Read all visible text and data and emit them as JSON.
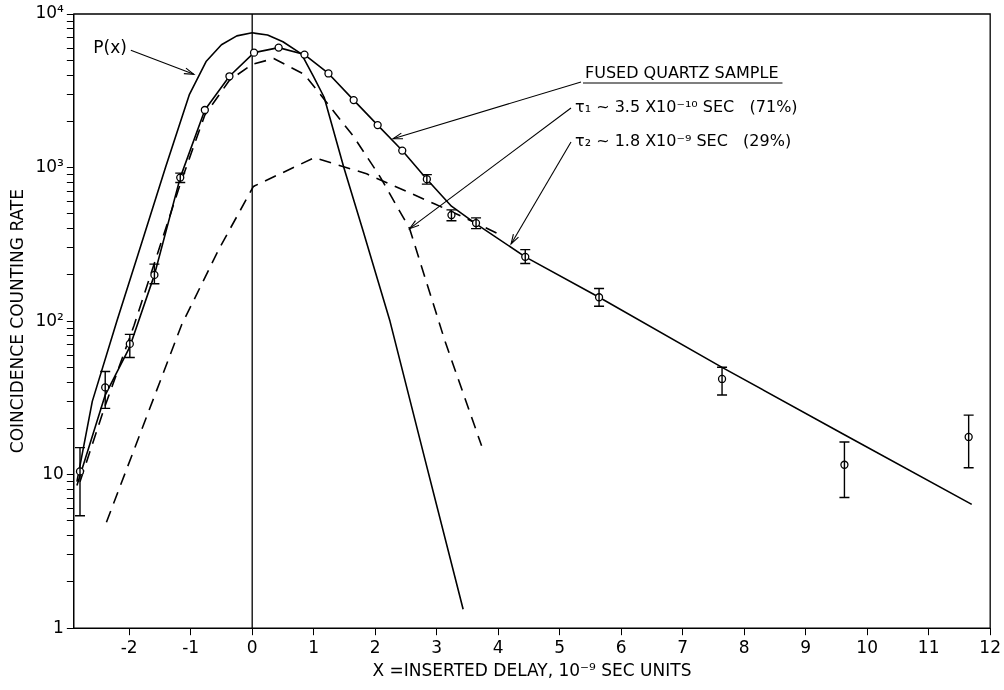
{
  "chart_data": {
    "type": "line",
    "xlabel": "X =INSERTED DELAY, 10⁻⁹ SEC UNITS",
    "ylabel": "COINCIDENCE COUNTING RATE",
    "log": "y",
    "grid": false,
    "legend": false,
    "xlim": [
      -2.9,
      12
    ],
    "xticks": [
      -2,
      -1,
      0,
      1,
      2,
      3,
      4,
      5,
      6,
      7,
      8,
      9,
      10,
      11,
      12
    ],
    "ylim": [
      1,
      10000
    ],
    "yticks": [
      1,
      {
        "value": 2,
        "label": null
      },
      {
        "value": 3,
        "label": null
      },
      {
        "value": 4,
        "label": null
      },
      {
        "value": 5,
        "label": null
      },
      {
        "value": 6,
        "label": null
      },
      {
        "value": 7,
        "label": null
      },
      {
        "value": 8,
        "label": null
      },
      {
        "value": 9,
        "label": null
      },
      10,
      {
        "value": 20,
        "label": null
      },
      {
        "value": 30,
        "label": null
      },
      {
        "value": 40,
        "label": null
      },
      {
        "value": 50,
        "label": null
      },
      {
        "value": 60,
        "label": null
      },
      {
        "value": 70,
        "label": null
      },
      {
        "value": 80,
        "label": null
      },
      {
        "value": 90,
        "label": null
      },
      {
        "value": 100,
        "label": "10²"
      },
      {
        "value": 200,
        "label": null
      },
      {
        "value": 300,
        "label": null
      },
      {
        "value": 400,
        "label": null
      },
      {
        "value": 500,
        "label": null
      },
      {
        "value": 600,
        "label": null
      },
      {
        "value": 700,
        "label": null
      },
      {
        "value": 800,
        "label": null
      },
      {
        "value": 900,
        "label": null
      },
      {
        "value": 1000,
        "label": "10³"
      },
      {
        "value": 2000,
        "label": null
      },
      {
        "value": 3000,
        "label": null
      },
      {
        "value": 4000,
        "label": null
      },
      {
        "value": 5000,
        "label": null
      },
      {
        "value": 6000,
        "label": null
      },
      {
        "value": 7000,
        "label": null
      },
      {
        "value": 8000,
        "label": null
      },
      {
        "value": 9000,
        "label": null
      },
      {
        "value": 10000,
        "label": "10⁴"
      }
    ],
    "ref_lines": [
      {
        "axis": "x",
        "value": 0,
        "color": "#000000",
        "line_style": "solid"
      }
    ],
    "series": [
      {
        "type": "scatter",
        "color": "#000000",
        "marker": "circle",
        "x": [
          -2.8,
          -2.39,
          -1.99,
          -1.59,
          -1.17,
          -0.77,
          -0.37,
          0.03,
          0.43,
          0.85,
          1.24,
          1.65,
          2.04,
          2.44,
          2.84,
          3.24,
          3.64,
          4.44,
          5.64,
          7.64,
          9.63,
          11.65
        ],
        "values": [
          10.5,
          37,
          71,
          200,
          860,
          2370,
          3930,
          5600,
          6040,
          5440,
          4100,
          2750,
          1890,
          1290,
          840,
          490,
          435,
          262,
          143,
          42,
          11.6,
          17.6
        ],
        "errors": [
          [
            5.4,
            15
          ],
          [
            27,
            47
          ],
          [
            58,
            82
          ],
          [
            175,
            235
          ],
          [
            800,
            920
          ],
          null,
          null,
          null,
          null,
          null,
          null,
          null,
          null,
          null,
          [
            780,
            900
          ],
          [
            450,
            530
          ],
          [
            400,
            470
          ],
          [
            237,
            292
          ],
          [
            125,
            163
          ],
          [
            33,
            50
          ],
          [
            7.1,
            16.3
          ],
          [
            11.1,
            24.4
          ]
        ]
      },
      {
        "type": "line",
        "color": "#000000",
        "marker": "none",
        "line_style": "solid",
        "x": [
          -2.85,
          -2.39,
          -1.99,
          -1.59,
          -1.17,
          -0.77,
          -0.37,
          0.03,
          0.43,
          0.85,
          1.24,
          1.65,
          2.04,
          2.44,
          2.84,
          3.24,
          3.64,
          4.44,
          5.64,
          7.64,
          9.63,
          11.7
        ],
        "values": [
          8.5,
          33,
          68,
          200,
          860,
          2370,
          3930,
          5600,
          6040,
          5440,
          4100,
          2750,
          1890,
          1290,
          840,
          560,
          430,
          262,
          143,
          50,
          18.2,
          6.4
        ]
      },
      {
        "type": "line",
        "name": "P(x)",
        "color": "#000000",
        "marker": "none",
        "line_style": "solid",
        "x": [
          -2.85,
          -2.6,
          -2.2,
          -1.8,
          -1.41,
          -1.02,
          -0.75,
          -0.5,
          -0.25,
          0,
          0.25,
          0.5,
          0.8,
          1.0,
          1.17,
          1.49,
          1.8,
          2.24,
          2.8,
          3.43
        ],
        "values": [
          9,
          30,
          100,
          320,
          1000,
          3000,
          4900,
          6300,
          7200,
          7540,
          7300,
          6600,
          5500,
          3900,
          2870,
          1000,
          390,
          100,
          13,
          1.33
        ]
      },
      {
        "type": "line",
        "color": "#000000",
        "marker": "none",
        "line_style": "dashed",
        "x": [
          -2.8,
          -2.4,
          -1.92,
          -1.17,
          -0.77,
          -0.37,
          0,
          0.35,
          0.85,
          1.65,
          2.08,
          2.56,
          3.14,
          3.73
        ],
        "values": [
          9,
          27.5,
          94,
          780,
          2200,
          3700,
          4700,
          5130,
          4040,
          1590,
          870,
          400,
          73,
          15.4
        ]
      },
      {
        "type": "line",
        "color": "#000000",
        "marker": "none",
        "line_style": "dashed",
        "x": [
          -2.37,
          -1.15,
          -0.54,
          0.02,
          1.01,
          1.86,
          2.98,
          3.64,
          4.0
        ],
        "values": [
          4.9,
          94,
          295,
          753,
          1160,
          910,
          577,
          435,
          370
        ]
      }
    ],
    "annotations": [
      {
        "text": "FUSED QUARTZ SAMPLE",
        "x": 2.29,
        "y": 1540
      },
      {
        "text": "τ₁ ~ 3.5 X10⁻¹⁰ SEC   (71%)",
        "x": 2.56,
        "y": 400
      },
      {
        "text": "τ₂ ~ 1.8 X10⁻⁹ SEC   (29%)",
        "x": 4.21,
        "y": 318
      }
    ]
  }
}
